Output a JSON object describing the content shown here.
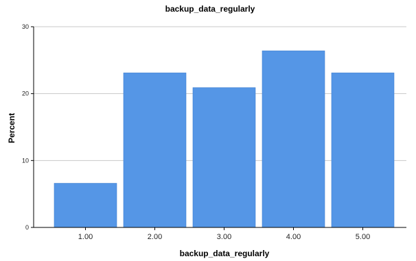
{
  "chart_data": {
    "type": "bar",
    "title": "backup_data_regularly",
    "xlabel": "backup_data_regularly",
    "ylabel": "Percent",
    "categories": [
      "1.00",
      "2.00",
      "3.00",
      "4.00",
      "5.00"
    ],
    "values": [
      6.6,
      23.1,
      20.9,
      26.4,
      23.1
    ],
    "ylim": [
      0,
      30
    ],
    "yticks": [
      "0",
      "10",
      "20",
      "30"
    ],
    "grid": true,
    "bar_color": "#5596e6",
    "grid_color": "#c8c8c8"
  }
}
